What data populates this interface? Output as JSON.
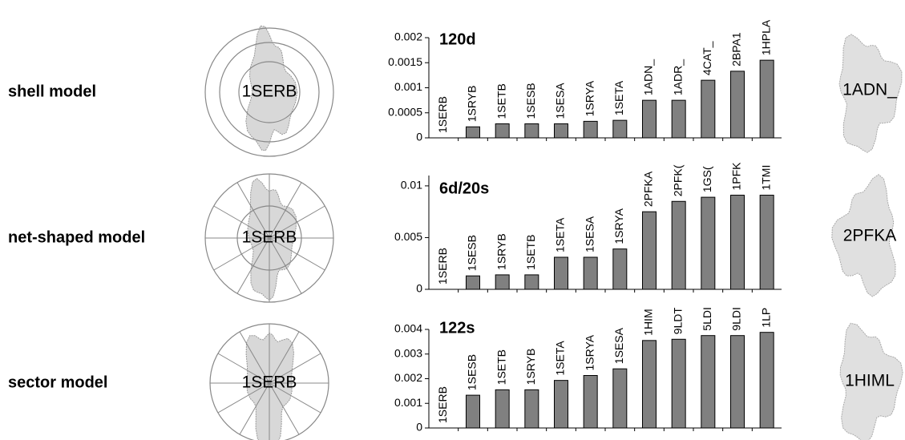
{
  "rows": [
    {
      "label": "shell model",
      "query": "1SERB",
      "match": "1ADN_"
    },
    {
      "label": "net-shaped model",
      "query": "1SERB",
      "match": "2PFKA"
    },
    {
      "label": "sector model",
      "query": "1SERB",
      "match": "1HIML"
    }
  ],
  "chart_data": [
    {
      "type": "bar",
      "title": "120d",
      "color": "#808080",
      "categories": [
        "1SERB",
        "1SRYB",
        "1SETB",
        "1SESB",
        "1SESA",
        "1SRYA",
        "1SETA",
        "1ADN_",
        "1ADR_",
        "4CAT_",
        "2BPA1",
        "1HPLA"
      ],
      "values": [
        0,
        0.00022,
        0.00028,
        0.00028,
        0.00028,
        0.00033,
        0.00035,
        0.00075,
        0.00075,
        0.00115,
        0.00133,
        0.00155
      ],
      "ylim": [
        0,
        0.002
      ],
      "yticks": [
        0,
        0.0005,
        0.001,
        0.0015,
        0.002
      ]
    },
    {
      "type": "bar",
      "title": "6d/20s",
      "color": "#808080",
      "categories": [
        "1SERB",
        "1SESB",
        "1SRYB",
        "1SETB",
        "1SETA",
        "1SESA",
        "1SRYA",
        "2PFKA",
        "2PFK(",
        "1GS(",
        "1PFK",
        "1TMI"
      ],
      "values": [
        0,
        0.0013,
        0.0014,
        0.0014,
        0.0031,
        0.0031,
        0.0039,
        0.0075,
        0.0085,
        0.0089,
        0.0091,
        0.0091
      ],
      "ylim": [
        0,
        0.011
      ],
      "yticks": [
        0,
        0.005,
        0.01
      ]
    },
    {
      "type": "bar",
      "title": "122s",
      "color": "#808080",
      "categories": [
        "1SERB",
        "1SESB",
        "1SETB",
        "1SRYB",
        "1SETA",
        "1SRYA",
        "1SESA",
        "1HIM",
        "9LDT",
        "5LDI",
        "9LDI",
        "1LP"
      ],
      "values": [
        0,
        0.00133,
        0.00155,
        0.00155,
        0.00193,
        0.00213,
        0.0024,
        0.00355,
        0.0036,
        0.00375,
        0.00375,
        0.00388
      ],
      "ylim": [
        0,
        0.004
      ],
      "yticks": [
        0,
        0.001,
        0.002,
        0.003,
        0.004
      ]
    }
  ]
}
